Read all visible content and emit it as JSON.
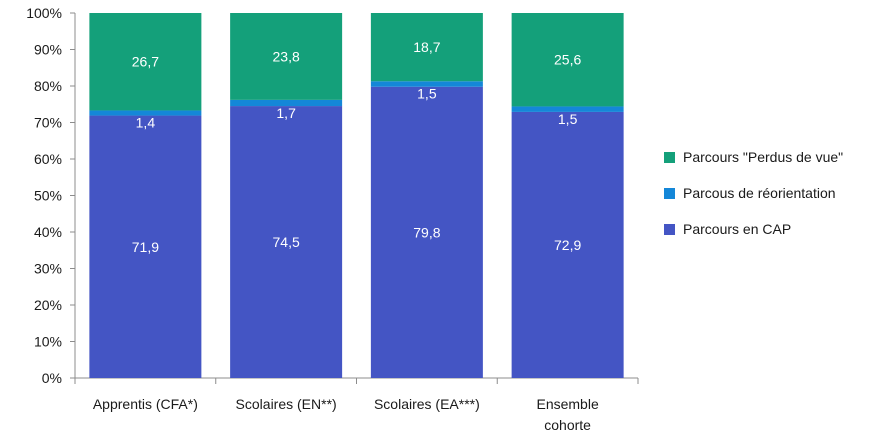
{
  "chart_data": {
    "type": "bar",
    "stacked": true,
    "categories": [
      [
        "Apprentis (CFA*)"
      ],
      [
        "Scolaires (EN**)"
      ],
      [
        "Scolaires (EA***)"
      ],
      [
        "Ensemble",
        "cohorte"
      ]
    ],
    "series": [
      {
        "name": "Parcours en CAP",
        "color": "#4455C4",
        "values": [
          71.9,
          74.5,
          79.8,
          72.9
        ],
        "labels": [
          "71,9",
          "74,5",
          "79,8",
          "72,9"
        ]
      },
      {
        "name": "Parcous de réorientation",
        "color": "#1487D8",
        "values": [
          1.4,
          1.7,
          1.5,
          1.5
        ],
        "labels": [
          "1,4",
          "1,7",
          "1,5",
          "1,5"
        ]
      },
      {
        "name": "Parcours \"Perdus de vue\"",
        "color": "#14A07A",
        "values": [
          26.7,
          23.8,
          18.7,
          25.6
        ],
        "labels": [
          "26,7",
          "23,8",
          "18,7",
          "25,6"
        ]
      }
    ],
    "yticks": [
      "0%",
      "10%",
      "20%",
      "30%",
      "40%",
      "50%",
      "60%",
      "70%",
      "80%",
      "90%",
      "100%"
    ],
    "ylim": [
      0,
      100
    ],
    "legend_position": "right",
    "legend_order": [
      2,
      1,
      0
    ],
    "grid": false
  }
}
